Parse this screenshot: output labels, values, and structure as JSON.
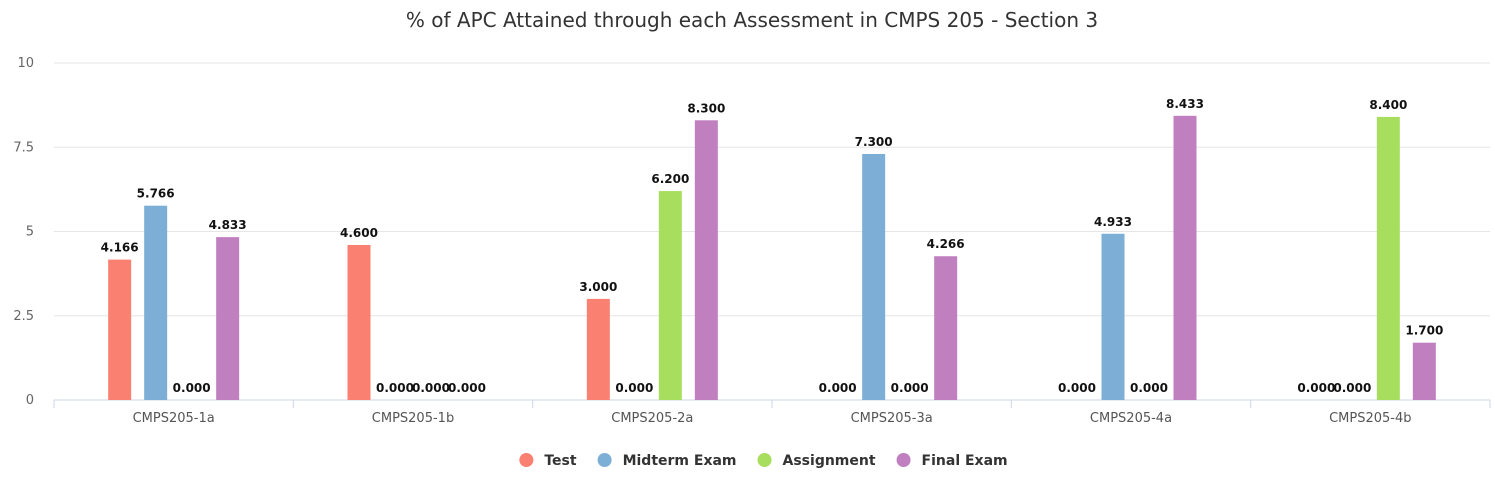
{
  "chart_data": {
    "type": "bar",
    "title": "% of APC Attained through each Assessment in CMPS 205 - Section 3",
    "xlabel": "",
    "ylabel": "",
    "ylim": [
      0,
      10
    ],
    "yticks": [
      0,
      2.5,
      5,
      7.5,
      10
    ],
    "ytick_labels": [
      "0",
      "2.5",
      "5",
      "7.5",
      "10"
    ],
    "grid": true,
    "legend_position": "bottom-center",
    "categories": [
      "CMPS205-1a",
      "CMPS205-1b",
      "CMPS205-2a",
      "CMPS205-3a",
      "CMPS205-4a",
      "CMPS205-4b"
    ],
    "series": [
      {
        "name": "Test",
        "color": "#fa8072",
        "values": [
          4.166,
          4.6,
          3.0,
          0.0,
          0.0,
          0.0
        ],
        "labels": [
          "4.166",
          "4.600",
          "3.000",
          "0.000",
          "0.000",
          "0.000"
        ]
      },
      {
        "name": "Midterm Exam",
        "color": "#7daed6",
        "values": [
          5.766,
          0.0,
          0.0,
          7.3,
          4.933,
          0.0
        ],
        "labels": [
          "5.766",
          "0.000",
          "0.000",
          "7.300",
          "4.933",
          "0.000"
        ]
      },
      {
        "name": "Assignment",
        "color": "#a8de5e",
        "values": [
          0.0,
          0.0,
          6.2,
          0.0,
          0.0,
          8.4
        ],
        "labels": [
          "0.000",
          "0.000",
          "6.200",
          "0.000",
          "0.000",
          "8.400"
        ]
      },
      {
        "name": "Final Exam",
        "color": "#c07fbf",
        "values": [
          4.833,
          0.0,
          8.3,
          4.266,
          8.433,
          1.7
        ],
        "labels": [
          "4.833",
          "0.000",
          "8.300",
          "4.266",
          "8.433",
          "1.700"
        ]
      }
    ]
  }
}
